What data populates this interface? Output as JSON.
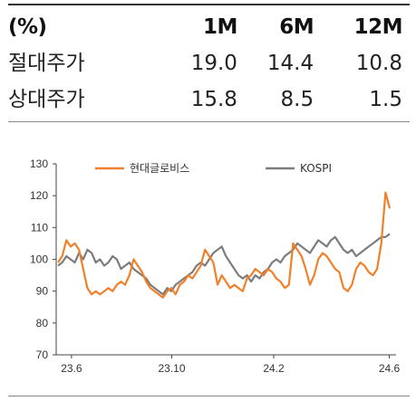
{
  "table": {
    "header": [
      "(%)",
      "1M",
      "6M",
      "12M"
    ],
    "rows": [
      {
        "label": "절대주가",
        "values": [
          "19.0",
          "14.4",
          "10.8"
        ]
      },
      {
        "label": "상대주가",
        "values": [
          "15.8",
          "8.5",
          "1.5"
        ]
      }
    ]
  },
  "chart_data": {
    "type": "line",
    "ylim": [
      70,
      130
    ],
    "yticks": [
      "130",
      "120",
      "110",
      "100",
      "90",
      "80",
      "70"
    ],
    "xticks": [
      "23.6",
      "23.10",
      "24.2",
      "24.6"
    ],
    "xlim": [
      "2023-06",
      "2024-06"
    ],
    "grid": false,
    "legend_position": "top",
    "series": [
      {
        "name": "현대글로비스",
        "color": "#f0802a",
        "values": [
          99,
          101,
          106,
          104,
          105,
          103,
          97,
          91,
          89,
          90,
          89,
          90,
          91,
          90,
          92,
          93,
          92,
          95,
          100,
          98,
          96,
          93,
          91,
          90,
          89,
          88,
          90,
          91,
          89,
          92,
          93,
          95,
          94,
          96,
          98,
          103,
          101,
          99,
          92,
          95,
          93,
          91,
          92,
          91,
          90,
          94,
          95,
          97,
          96,
          95,
          97,
          96,
          94,
          93,
          91,
          92,
          105,
          103,
          101,
          97,
          92,
          95,
          100,
          102,
          101,
          99,
          97,
          96,
          91,
          90,
          92,
          97,
          99,
          98,
          96,
          95,
          97,
          105,
          121,
          116
        ]
      },
      {
        "name": "KOSPI",
        "color": "#7d7d7d",
        "values": [
          98,
          99,
          101,
          100,
          99,
          102,
          100,
          103,
          102,
          99,
          100,
          98,
          99,
          101,
          100,
          97,
          98,
          99,
          97,
          96,
          95,
          94,
          92,
          91,
          90,
          89,
          91,
          90,
          92,
          93,
          94,
          95,
          96,
          98,
          99,
          98,
          100,
          102,
          103,
          104,
          101,
          99,
          97,
          95,
          94,
          95,
          93,
          95,
          94,
          96,
          97,
          99,
          100,
          99,
          101,
          102,
          103,
          105,
          104,
          103,
          102,
          104,
          106,
          105,
          104,
          106,
          107,
          105,
          103,
          102,
          103,
          101,
          102,
          103,
          104,
          105,
          106,
          107,
          107,
          108
        ]
      }
    ]
  }
}
